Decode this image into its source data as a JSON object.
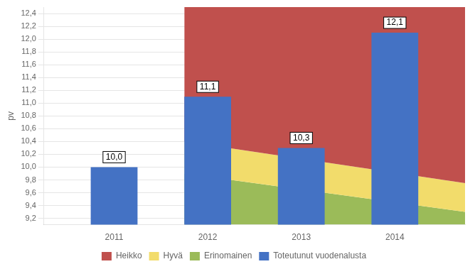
{
  "chart_data": {
    "type": "bar",
    "x": [
      2011,
      2012,
      2013,
      2014
    ],
    "xlim": [
      2010.25,
      2014.75
    ],
    "xticks": [
      2011,
      2012,
      2013,
      2014
    ],
    "ylabel": "pv",
    "ylim": [
      9.1,
      12.5
    ],
    "yticks": [
      {
        "value": 9.2,
        "label": "9,2"
      },
      {
        "value": 9.4,
        "label": "9,4"
      },
      {
        "value": 9.6,
        "label": "9,6"
      },
      {
        "value": 9.8,
        "label": "9,8"
      },
      {
        "value": 10.0,
        "label": "10,0"
      },
      {
        "value": 10.2,
        "label": "10,2"
      },
      {
        "value": 10.4,
        "label": "10,4"
      },
      {
        "value": 10.6,
        "label": "10,6"
      },
      {
        "value": 10.8,
        "label": "10,8"
      },
      {
        "value": 11.0,
        "label": "11,0"
      },
      {
        "value": 11.2,
        "label": "11,2"
      },
      {
        "value": 11.4,
        "label": "11,4"
      },
      {
        "value": 11.6,
        "label": "11,6"
      },
      {
        "value": 11.8,
        "label": "11,8"
      },
      {
        "value": 12.0,
        "label": "12,0"
      },
      {
        "value": 12.2,
        "label": "12,2"
      },
      {
        "value": 12.4,
        "label": "12,4"
      }
    ],
    "grid": true,
    "legend": "bottom",
    "data_labels": true,
    "series": [
      {
        "name": "Heikko",
        "type": "area",
        "color": "#C0504D",
        "x": [
          2011.75,
          2014.75
        ],
        "values": [
          12.5,
          12.5
        ]
      },
      {
        "name": "Hyvä",
        "type": "area",
        "color": "#F2DC6B",
        "x": [
          2011.75,
          2014.75
        ],
        "values": [
          10.4,
          9.75
        ]
      },
      {
        "name": "Erinomainen",
        "type": "area",
        "color": "#9BBB59",
        "x": [
          2011.75,
          2014.75
        ],
        "values": [
          9.9,
          9.3
        ]
      },
      {
        "name": "Toteutunut vuodenalusta",
        "type": "bar",
        "color": "#4472C4",
        "values": [
          10.0,
          11.1,
          10.3,
          12.1
        ],
        "value_labels": [
          "10,0",
          "11,1",
          "10,3",
          "12,1"
        ]
      }
    ]
  }
}
